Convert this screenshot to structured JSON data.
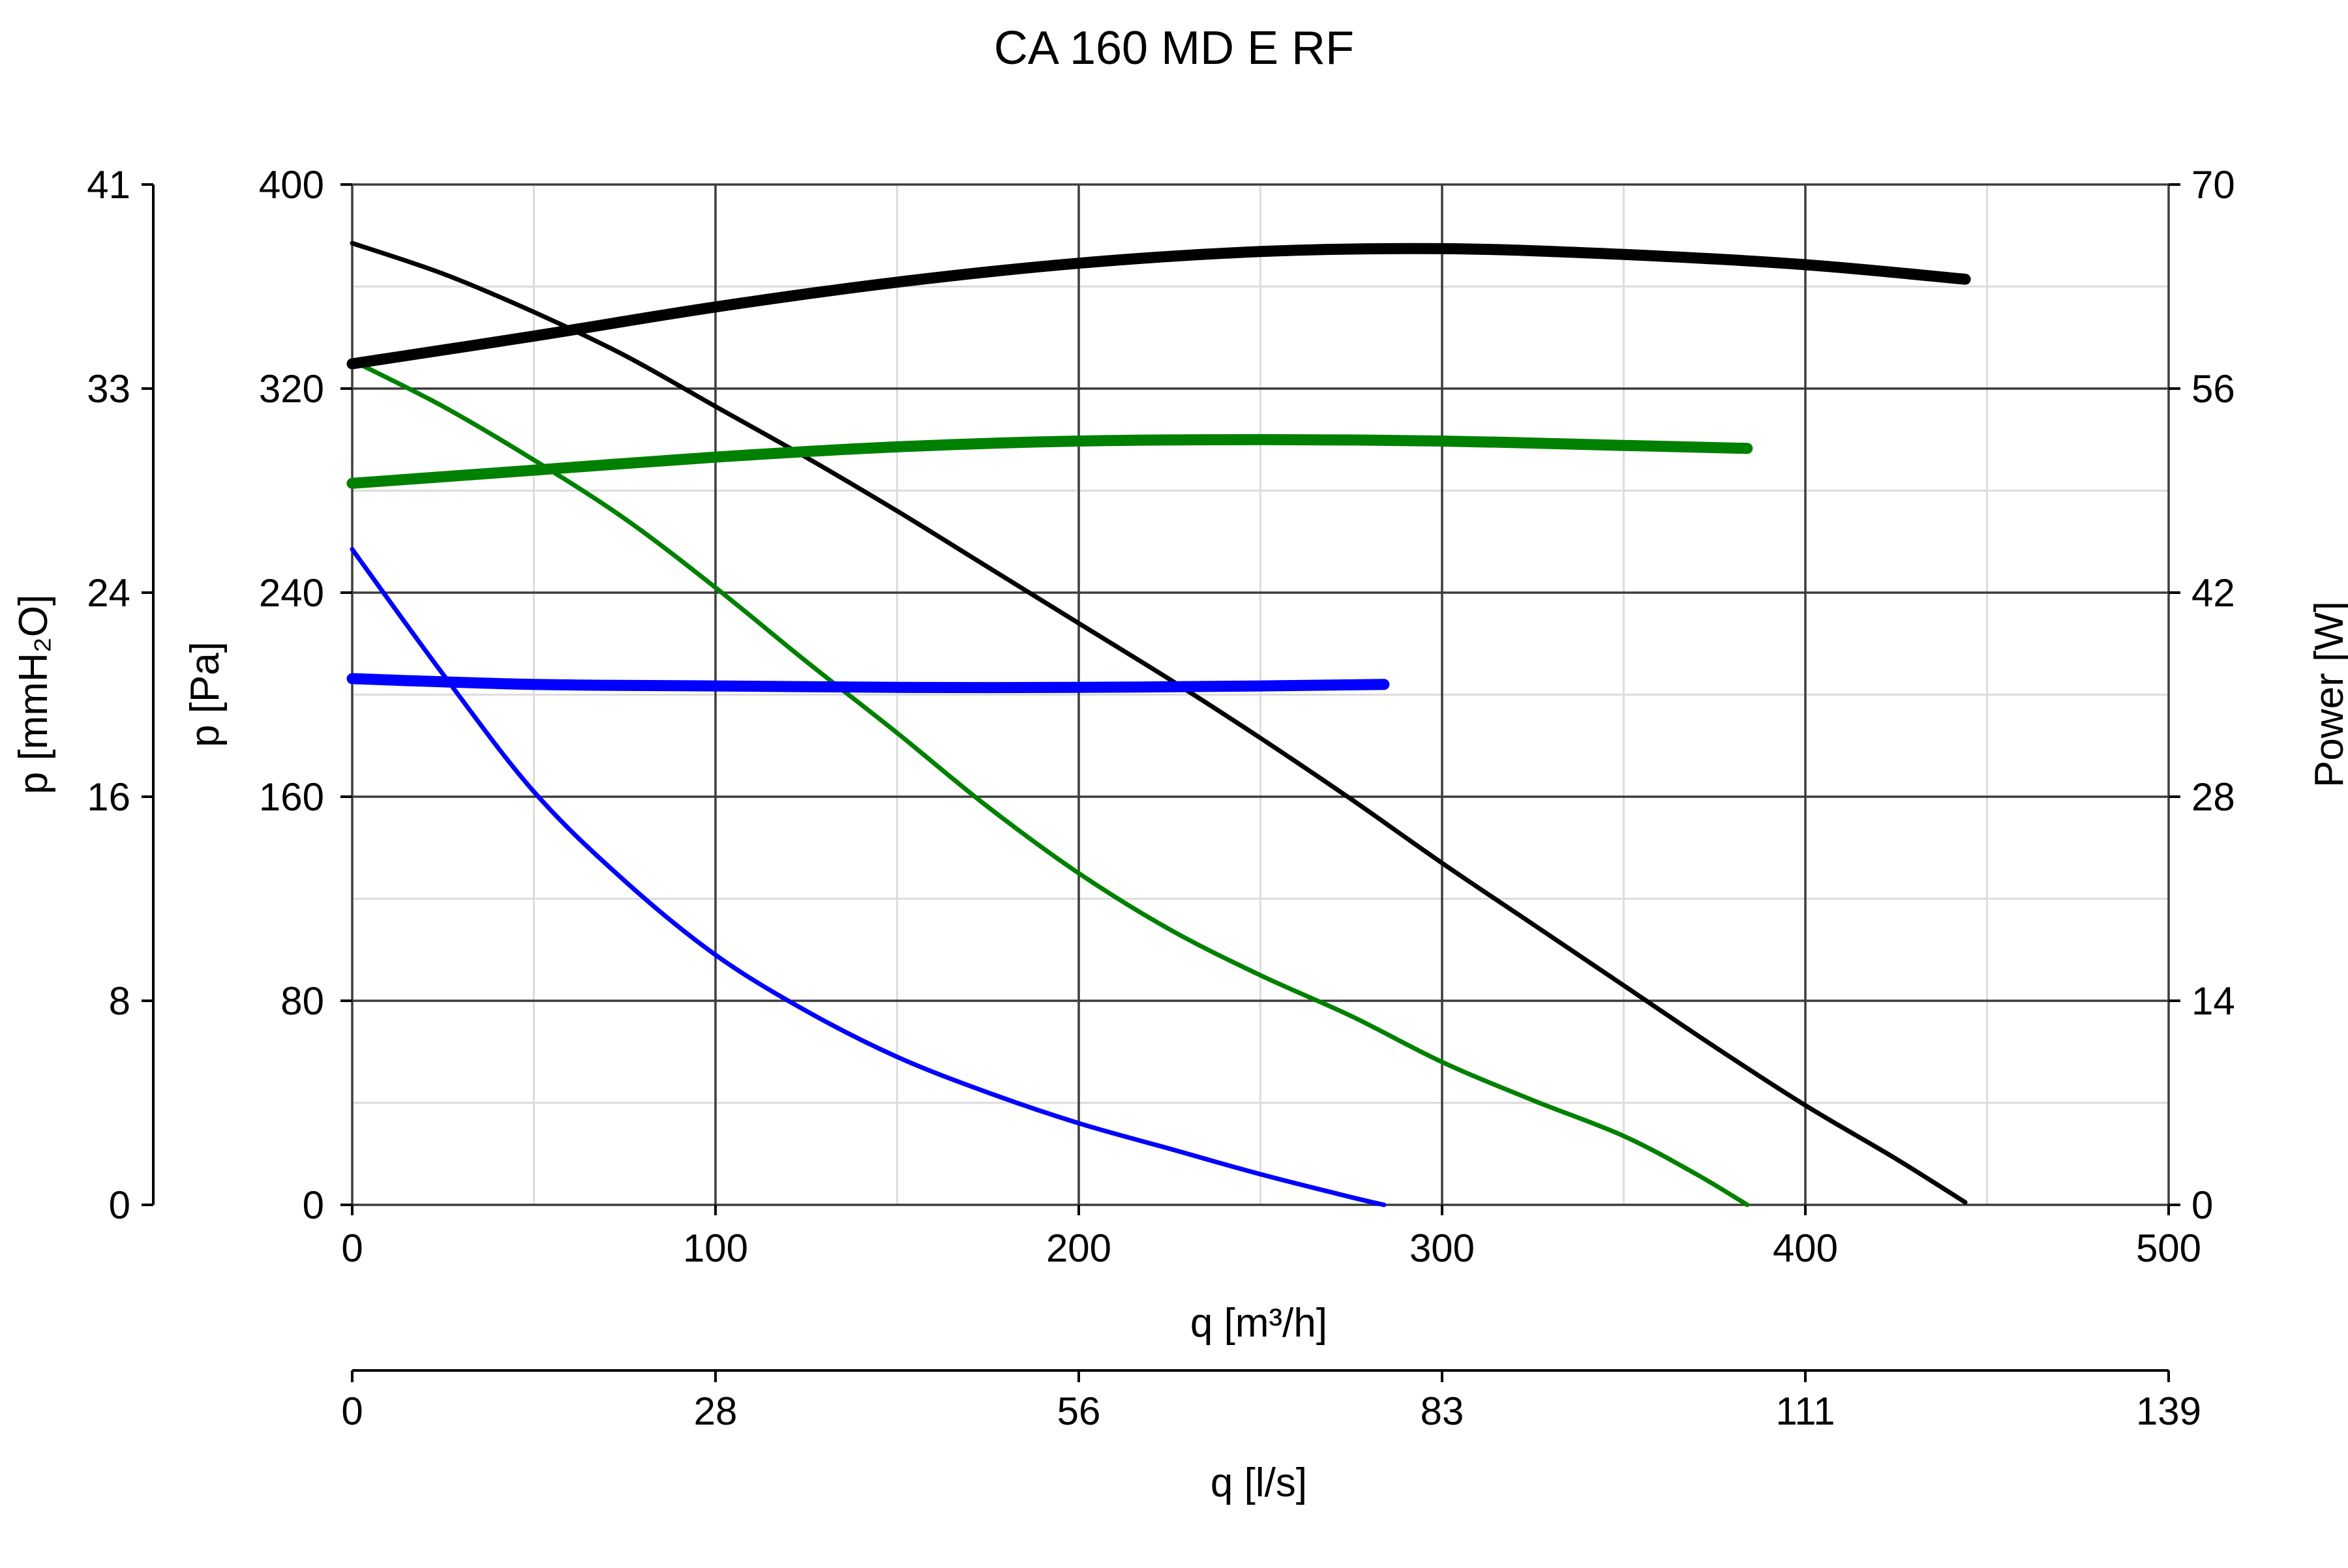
{
  "chart_data": {
    "type": "line",
    "title": "CA 160 MD E RF",
    "x_axes": {
      "primary": {
        "label": "q [m³/h]",
        "range": [
          0,
          500
        ],
        "ticks": [
          "0",
          "100",
          "200",
          "300",
          "400",
          "500"
        ]
      },
      "secondary": {
        "label": "q [l/s]",
        "range": [
          0,
          139
        ],
        "ticks": [
          "0",
          "28",
          "56",
          "83",
          "111",
          "139"
        ]
      }
    },
    "y_axes": {
      "pressure_pa": {
        "label": "p [Pa]",
        "range": [
          0,
          400
        ],
        "ticks": [
          "0",
          "80",
          "160",
          "240",
          "320",
          "400"
        ]
      },
      "pressure_mmh2o": {
        "label": "p [mmH₂O]",
        "range": [
          0,
          41
        ],
        "ticks": [
          "0",
          "8",
          "16",
          "24",
          "33",
          "41"
        ]
      },
      "power": {
        "label": "Power [W]",
        "range": [
          0,
          70
        ],
        "ticks": [
          "0",
          "14",
          "28",
          "42",
          "56",
          "70"
        ]
      }
    },
    "grid": true,
    "series": [
      {
        "kind": "pressure",
        "axis": "pressure_pa",
        "color": "#000000",
        "weight": "thin",
        "points": [
          [
            0,
            377
          ],
          [
            25,
            365
          ],
          [
            50,
            350
          ],
          [
            75,
            333
          ],
          [
            100,
            313
          ],
          [
            125,
            293
          ],
          [
            150,
            272
          ],
          [
            175,
            250
          ],
          [
            200,
            228
          ],
          [
            225,
            206
          ],
          [
            250,
            183
          ],
          [
            275,
            159
          ],
          [
            300,
            134
          ],
          [
            325,
            110
          ],
          [
            350,
            86
          ],
          [
            375,
            62
          ],
          [
            400,
            39
          ],
          [
            425,
            18
          ],
          [
            444,
            1
          ]
        ]
      },
      {
        "kind": "pressure",
        "axis": "pressure_pa",
        "color": "#008000",
        "weight": "thin",
        "points": [
          [
            0,
            331
          ],
          [
            25,
            313
          ],
          [
            50,
            292
          ],
          [
            75,
            269
          ],
          [
            100,
            242
          ],
          [
            125,
            213
          ],
          [
            150,
            185
          ],
          [
            175,
            156
          ],
          [
            200,
            130
          ],
          [
            225,
            108
          ],
          [
            250,
            90
          ],
          [
            275,
            74
          ],
          [
            300,
            56
          ],
          [
            325,
            41
          ],
          [
            350,
            27
          ],
          [
            370,
            12
          ],
          [
            384,
            0
          ]
        ]
      },
      {
        "kind": "pressure",
        "axis": "pressure_pa",
        "color": "#0000ff",
        "weight": "thin",
        "points": [
          [
            0,
            257
          ],
          [
            25,
            208
          ],
          [
            50,
            162
          ],
          [
            75,
            127
          ],
          [
            100,
            98
          ],
          [
            125,
            76
          ],
          [
            150,
            58
          ],
          [
            175,
            44
          ],
          [
            200,
            32
          ],
          [
            225,
            22
          ],
          [
            250,
            12
          ],
          [
            275,
            3
          ],
          [
            284,
            0
          ]
        ]
      },
      {
        "kind": "power",
        "axis": "power",
        "color": "#000000",
        "weight": "thick",
        "points": [
          [
            0,
            57.7
          ],
          [
            50,
            59.6
          ],
          [
            100,
            61.6
          ],
          [
            150,
            63.3
          ],
          [
            200,
            64.6
          ],
          [
            250,
            65.4
          ],
          [
            300,
            65.6
          ],
          [
            350,
            65.2
          ],
          [
            400,
            64.5
          ],
          [
            444,
            63.5
          ]
        ]
      },
      {
        "kind": "power",
        "axis": "power",
        "color": "#008000",
        "weight": "thick",
        "points": [
          [
            0,
            49.5
          ],
          [
            50,
            50.4
          ],
          [
            100,
            51.3
          ],
          [
            150,
            52.0
          ],
          [
            200,
            52.4
          ],
          [
            250,
            52.5
          ],
          [
            300,
            52.4
          ],
          [
            350,
            52.1
          ],
          [
            384,
            51.9
          ]
        ]
      },
      {
        "kind": "power",
        "axis": "power",
        "color": "#0000ff",
        "weight": "thick",
        "points": [
          [
            0,
            36.1
          ],
          [
            50,
            35.7
          ],
          [
            100,
            35.6
          ],
          [
            150,
            35.5
          ],
          [
            200,
            35.5
          ],
          [
            250,
            35.6
          ],
          [
            284,
            35.7
          ]
        ]
      }
    ]
  }
}
